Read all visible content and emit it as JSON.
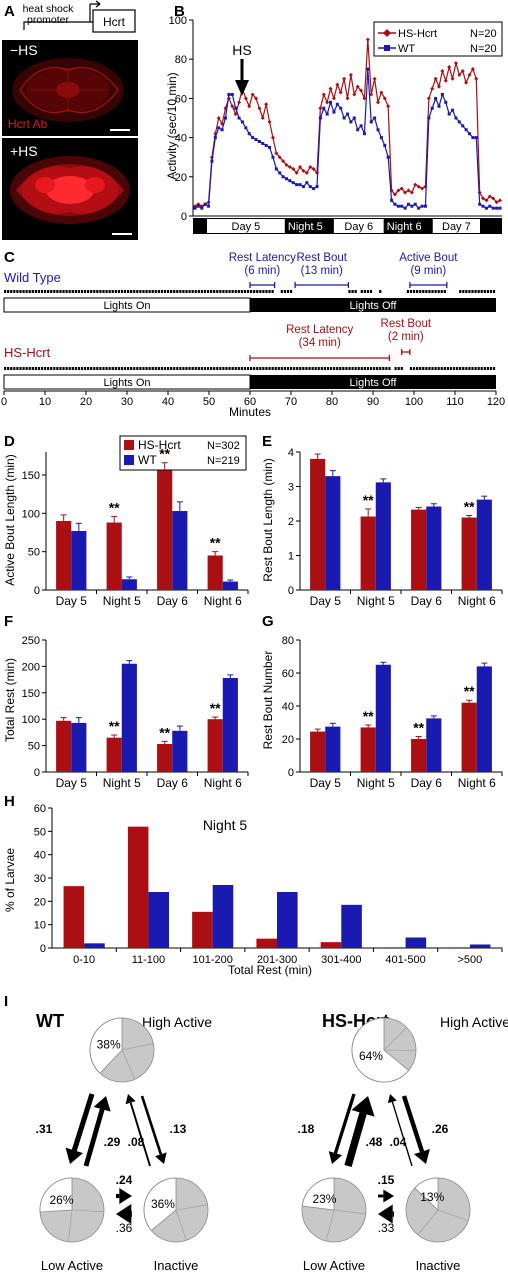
{
  "colors": {
    "hs": "#aa0f13",
    "wt": "#1a1ab0",
    "micro_bg": "#000000",
    "micro_signal": "#e0151a",
    "pie_gray": "#c8c8c8"
  },
  "panelA": {
    "panel_label": "A",
    "construct_promoter": "heat shock promoter",
    "construct_gene": "Hcrt",
    "label_top": "−HS",
    "label_bottom": "+HS",
    "antibody_label": "Hcrt Ab"
  },
  "panelB": {
    "panel_label": "B",
    "ylabel": "Activity (sec/10 min)",
    "yticks": [
      "0",
      "20",
      "40",
      "60",
      "80",
      "100"
    ],
    "hs_label": "HS",
    "legend": [
      {
        "key": "hs",
        "name": "HS-Hcrt",
        "n": "N=20"
      },
      {
        "key": "wt",
        "name": "WT",
        "n": "N=20"
      }
    ],
    "periods": [
      {
        "label": "Day 5",
        "type": "day"
      },
      {
        "label": "Night 5",
        "type": "night"
      },
      {
        "label": "Day 6",
        "type": "day"
      },
      {
        "label": "Night 6",
        "type": "night"
      },
      {
        "label": "Day 7",
        "type": "day"
      }
    ],
    "chart_data": {
      "type": "line",
      "ylim": [
        0,
        100
      ],
      "series": [
        {
          "name": "HS-Hcrt",
          "key": "hs",
          "values": [
            5,
            6,
            5,
            6,
            7,
            30,
            42,
            50,
            47,
            55,
            60,
            56,
            52,
            58,
            65,
            60,
            56,
            62,
            60,
            55,
            50,
            57,
            48,
            40,
            32,
            30,
            28,
            26,
            25,
            24,
            22,
            25,
            23,
            22,
            25,
            24,
            22,
            55,
            62,
            58,
            65,
            60,
            67,
            63,
            70,
            60,
            72,
            62,
            66,
            64,
            60,
            90,
            62,
            70,
            58,
            63,
            60,
            56,
            13,
            11,
            13,
            14,
            12,
            13,
            12,
            16,
            15,
            14,
            15,
            60,
            65,
            70,
            66,
            74,
            69,
            76,
            70,
            78,
            72,
            74,
            68,
            72,
            75,
            70,
            12,
            9,
            8,
            10,
            9,
            7,
            8
          ]
        },
        {
          "name": "WT",
          "key": "wt",
          "values": [
            4,
            5,
            4,
            6,
            5,
            28,
            40,
            45,
            44,
            50,
            62,
            62,
            55,
            50,
            48,
            45,
            42,
            40,
            39,
            38,
            37,
            36,
            35,
            30,
            24,
            22,
            20,
            19,
            18,
            17,
            16,
            16,
            15,
            17,
            15,
            14,
            15,
            50,
            55,
            52,
            58,
            53,
            57,
            55,
            50,
            52,
            48,
            50,
            44,
            46,
            42,
            75,
            48,
            50,
            44,
            40,
            36,
            30,
            8,
            6,
            5,
            5,
            4,
            6,
            5,
            6,
            4,
            5,
            5,
            50,
            55,
            60,
            56,
            62,
            58,
            52,
            54,
            50,
            48,
            46,
            44,
            42,
            40,
            40,
            6,
            5,
            4,
            5,
            4,
            4,
            4
          ]
        }
      ]
    }
  },
  "panelC": {
    "panel_label": "C",
    "xlabel": "Minutes",
    "xticks": [
      "0",
      "10",
      "20",
      "30",
      "40",
      "50",
      "60",
      "70",
      "80",
      "90",
      "100",
      "110",
      "120"
    ],
    "lights_on": "Lights On",
    "lights_off": "Lights Off",
    "wt": {
      "label": "Wild Type",
      "annotations": [
        {
          "text": "Rest Latency",
          "sub": "(6 min)",
          "start": 60,
          "end": 66
        },
        {
          "text": "Rest Bout",
          "sub": "(13 min)",
          "start": 71,
          "end": 84
        },
        {
          "text": "Active Bout",
          "sub": "(9 min)",
          "start": 99,
          "end": 108
        }
      ],
      "rest_gaps": [
        [
          66,
          67
        ],
        [
          70,
          71
        ],
        [
          71,
          84
        ],
        [
          86,
          87
        ],
        [
          90,
          91
        ],
        [
          92,
          98
        ],
        [
          108,
          110
        ],
        [
          110,
          111
        ]
      ]
    },
    "hs": {
      "label": "HS-Hcrt",
      "annotations": [
        {
          "text": "Rest Latency",
          "sub": "(34 min)",
          "start": 60,
          "end": 94
        },
        {
          "text": "Rest Bout",
          "sub": "(2 min)",
          "start": 97,
          "end": 99
        }
      ],
      "rest_gaps": [
        [
          94,
          95
        ],
        [
          97,
          99
        ]
      ]
    }
  },
  "panelD": {
    "panel_label": "D",
    "ylabel": "Active Bout Length (min)",
    "yticks": [
      "0",
      "50",
      "100",
      "150"
    ],
    "legend": [
      {
        "key": "hs",
        "name": "HS-Hcrt",
        "n": "N=302"
      },
      {
        "key": "wt",
        "name": "WT",
        "n": "N=219"
      }
    ],
    "chart_data": {
      "type": "bar",
      "categories": [
        "Day 5",
        "Night 5",
        "Day 6",
        "Night 6"
      ],
      "ylim": [
        0,
        180
      ],
      "series": [
        {
          "name": "HS-Hcrt",
          "key": "hs",
          "values": [
            90,
            88,
            156,
            45
          ],
          "err": [
            8,
            8,
            10,
            5
          ]
        },
        {
          "name": "WT",
          "key": "wt",
          "values": [
            77,
            14,
            103,
            11
          ],
          "err": [
            10,
            3,
            12,
            2
          ]
        }
      ],
      "annotations": [
        "",
        "**",
        "**",
        "**"
      ]
    }
  },
  "panelE": {
    "panel_label": "E",
    "ylabel": "Rest Bout Length (min)",
    "yticks": [
      "0",
      "1",
      "2",
      "3",
      "4"
    ],
    "chart_data": {
      "type": "bar",
      "categories": [
        "Day 5",
        "Night 5",
        "Day 6",
        "Night 6"
      ],
      "ylim": [
        0,
        4
      ],
      "series": [
        {
          "name": "HS-Hcrt",
          "key": "hs",
          "values": [
            3.8,
            2.13,
            2.33,
            2.1
          ],
          "err": [
            0.14,
            0.22,
            0.06,
            0.06
          ]
        },
        {
          "name": "WT",
          "key": "wt",
          "values": [
            3.3,
            3.12,
            2.42,
            2.62
          ],
          "err": [
            0.16,
            0.1,
            0.08,
            0.1
          ]
        }
      ],
      "annotations": [
        "",
        "**",
        "",
        "**"
      ]
    }
  },
  "panelF": {
    "panel_label": "F",
    "ylabel": "Total  Rest (min)",
    "yticks": [
      "0",
      "50",
      "100",
      "150",
      "200",
      "250"
    ],
    "chart_data": {
      "type": "bar",
      "categories": [
        "Day 5",
        "Night 5",
        "Day 6",
        "Night 6"
      ],
      "ylim": [
        0,
        250
      ],
      "series": [
        {
          "name": "HS-Hcrt",
          "key": "hs",
          "values": [
            97,
            65,
            53,
            100
          ],
          "err": [
            6,
            5,
            5,
            4
          ]
        },
        {
          "name": "WT",
          "key": "wt",
          "values": [
            93,
            205,
            78,
            178
          ],
          "err": [
            10,
            6,
            9,
            6
          ]
        }
      ],
      "annotations": [
        "",
        "**",
        "**",
        "**"
      ]
    }
  },
  "panelG": {
    "panel_label": "G",
    "ylabel": "Rest Bout Number",
    "yticks": [
      "0",
      "20",
      "40",
      "60",
      "80"
    ],
    "chart_data": {
      "type": "bar",
      "categories": [
        "Day 5",
        "Night 5",
        "Day 6",
        "Night 6"
      ],
      "ylim": [
        0,
        80
      ],
      "series": [
        {
          "name": "HS-Hcrt",
          "key": "hs",
          "values": [
            24.5,
            27,
            20,
            42
          ],
          "err": [
            1.5,
            1.5,
            1.5,
            1.5
          ]
        },
        {
          "name": "WT",
          "key": "wt",
          "values": [
            27.5,
            65,
            32.5,
            64
          ],
          "err": [
            2,
            1.5,
            1.5,
            2
          ]
        }
      ],
      "annotations": [
        "",
        "**",
        "**",
        "**"
      ]
    }
  },
  "panelH": {
    "panel_label": "H",
    "title": "Night 5",
    "ylabel": "% of Larvae",
    "xlabel": "Total Rest (min)",
    "yticks": [
      "0",
      "10",
      "20",
      "30",
      "40",
      "50",
      "60"
    ],
    "chart_data": {
      "type": "bar",
      "categories": [
        "0-10",
        "11-100",
        "101-200",
        "201-300",
        "301-400",
        "401-500",
        ">500"
      ],
      "ylim": [
        0,
        60
      ],
      "series": [
        {
          "name": "HS-Hcrt",
          "key": "hs",
          "values": [
            26.5,
            52,
            15.5,
            4,
            2.5,
            0.3,
            0.3
          ]
        },
        {
          "name": "WT",
          "key": "wt",
          "values": [
            2,
            24,
            27,
            24,
            18.5,
            4.5,
            1.5
          ]
        }
      ]
    }
  },
  "panelI": {
    "panel_label": "I",
    "groups": [
      {
        "title": "WT",
        "high_label": "High Active",
        "low_label": "Low Active",
        "inactive_label": "Inactive",
        "high_pct": "38%",
        "low_pct": "26%",
        "inactive_pct": "36%",
        "high_value": 0.38,
        "low_value": 0.26,
        "inactive_value": 0.36,
        "t_high_low": ".31",
        "t_low_high": ".29",
        "t_high_inactive": ".13",
        "t_inactive_high": ".08",
        "t_low_inactive": ".24",
        "t_inactive_low": ".36"
      },
      {
        "title": "HS-Hcrt",
        "high_label": "High Active",
        "low_label": "Low Active",
        "inactive_label": "Inactive",
        "high_pct": "64%",
        "low_pct": "23%",
        "inactive_pct": "13%",
        "high_value": 0.64,
        "low_value": 0.23,
        "inactive_value": 0.13,
        "t_high_low": ".18",
        "t_low_high": ".48",
        "t_high_inactive": ".26",
        "t_inactive_high": ".04",
        "t_low_inactive": ".15",
        "t_inactive_low": ".33"
      }
    ]
  }
}
